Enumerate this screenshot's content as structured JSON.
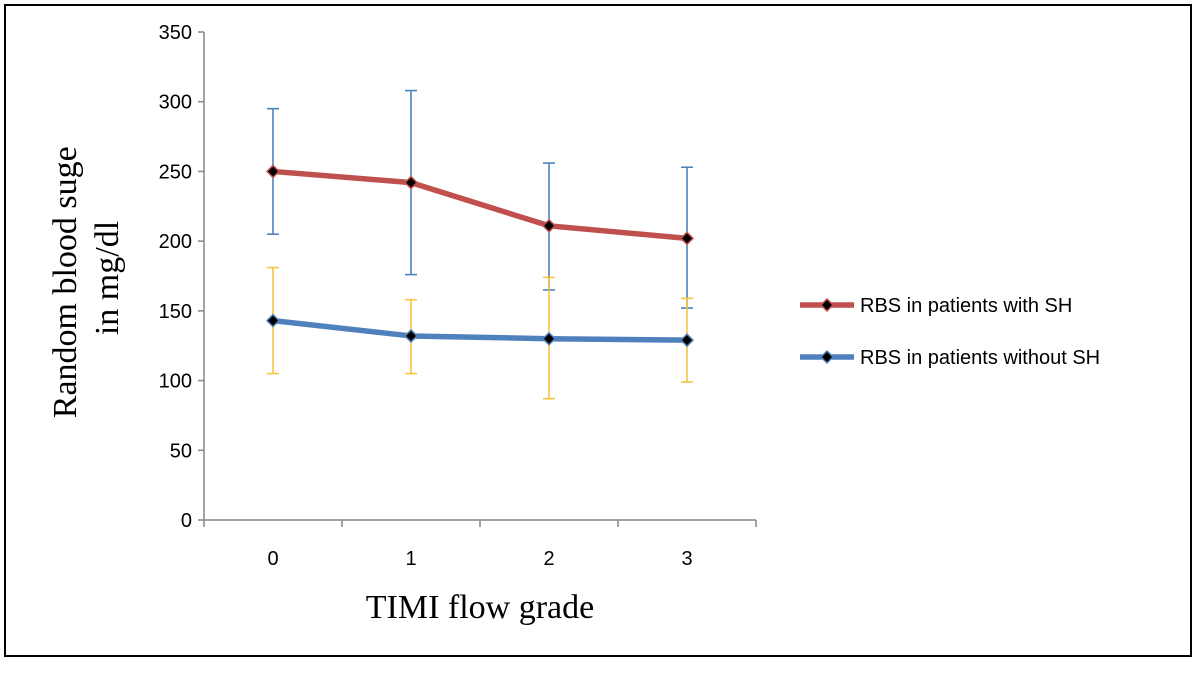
{
  "chart_data": {
    "type": "line",
    "title": "",
    "xlabel": "TIMI flow grade",
    "ylabel_lines": [
      "Random blood suge",
      "in mg/dl"
    ],
    "categories": [
      "0",
      "1",
      "2",
      "3"
    ],
    "ylim": [
      0,
      350
    ],
    "yticks": [
      0,
      50,
      100,
      150,
      200,
      250,
      300,
      350
    ],
    "grid": false,
    "legend_position": "right",
    "series": [
      {
        "name": "RBS in patients with SH",
        "values": [
          250,
          242,
          211,
          202
        ],
        "err_low": [
          205,
          176,
          165,
          152
        ],
        "err_high": [
          295,
          308,
          256,
          253
        ],
        "color": "#c0504d",
        "error_color": "#4f81bd",
        "marker": "diamond"
      },
      {
        "name": "RBS in patients without SH",
        "values": [
          143,
          132,
          130,
          129
        ],
        "err_low": [
          105,
          105,
          87,
          99
        ],
        "err_high": [
          181,
          158,
          174,
          159
        ],
        "color": "#4f81bd",
        "error_color": "#f6c342",
        "marker": "diamond"
      }
    ]
  }
}
